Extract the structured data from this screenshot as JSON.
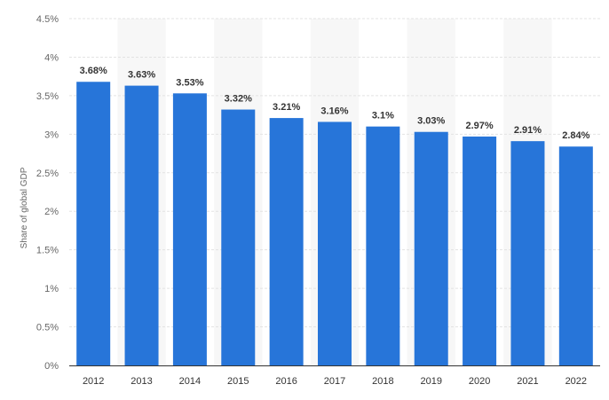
{
  "chart_data": {
    "type": "bar",
    "title": "",
    "xlabel": "",
    "ylabel": "Share of global GDP",
    "categories": [
      "2012",
      "2013",
      "2014",
      "2015",
      "2016",
      "2017",
      "2018",
      "2019",
      "2020",
      "2021",
      "2022"
    ],
    "values": [
      3.68,
      3.63,
      3.53,
      3.32,
      3.21,
      3.16,
      3.1,
      3.03,
      2.97,
      2.91,
      2.84
    ],
    "data_labels": [
      "3.68%",
      "3.63%",
      "3.53%",
      "3.32%",
      "3.21%",
      "3.16%",
      "3.1%",
      "3.03%",
      "2.97%",
      "2.91%",
      "2.84%"
    ],
    "ylim": [
      0,
      4.5
    ],
    "yticks": [
      0,
      0.5,
      1,
      1.5,
      2,
      2.5,
      3,
      3.5,
      4,
      4.5
    ],
    "ytick_labels": [
      "0%",
      "0.5%",
      "1%",
      "1.5%",
      "2%",
      "2.5%",
      "3%",
      "3.5%",
      "4%",
      "4.5%"
    ],
    "grid": true,
    "legend": "none",
    "bar_color": "#2775D9",
    "band_color": "#F7F7F7",
    "grid_color": "#E3E3E3",
    "axis_color": "#333333"
  }
}
